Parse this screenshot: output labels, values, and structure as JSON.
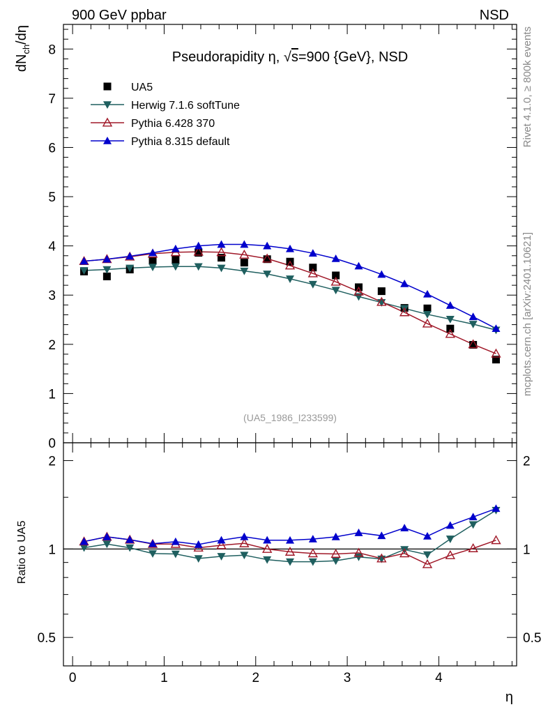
{
  "header": {
    "left": "900 GeV ppbar",
    "right": "NSD"
  },
  "side_text": {
    "top": "Rivet 4.1.0, ≥ 800k events",
    "bottom": "mcplots.cern.ch [arXiv:2401.10621]"
  },
  "chart_data": {
    "type": "scatter",
    "title": "Pseudorapidity η, √s=900 {GeV}, NSD",
    "title_parts": {
      "prefix": "Pseudorapidity η, ",
      "sqrt_symbol": "√",
      "sqrt_arg": "s",
      "suffix": "=900 {GeV}, NSD"
    },
    "xlabel": "η",
    "ylabel": "dN_ch/dη",
    "ylabel_parts": {
      "base": "dN",
      "sub": "ch",
      "rest": "/dη"
    },
    "ratio_ylabel": "Ratio to UA5",
    "source_label": "(UA5_1986_I233599)",
    "xlim": [
      -0.1,
      4.85
    ],
    "ylim": [
      0,
      8.5
    ],
    "ratio_ylim": [
      0.4,
      2.3
    ],
    "x_ticks": [
      0,
      1,
      2,
      3,
      4
    ],
    "x_tick_labels": [
      "0",
      "1",
      "2",
      "3",
      "4"
    ],
    "y_ticks": [
      0,
      1,
      2,
      3,
      4,
      5,
      6,
      7,
      8
    ],
    "y_tick_labels": [
      "0",
      "1",
      "2",
      "3",
      "4",
      "5",
      "6",
      "7",
      "8"
    ],
    "ratio_ticks": [
      0.5,
      1,
      2
    ],
    "ratio_tick_labels": [
      "0.5",
      "1",
      "2"
    ],
    "legend_position": "top-left",
    "x": [
      0.125,
      0.375,
      0.625,
      0.875,
      1.125,
      1.375,
      1.625,
      1.875,
      2.125,
      2.375,
      2.625,
      2.875,
      3.125,
      3.375,
      3.625,
      3.875,
      4.125,
      4.375,
      4.625
    ],
    "series": [
      {
        "name": "UA5",
        "kind": "data",
        "marker": "square-filled",
        "color": "#000000",
        "values": [
          3.48,
          3.38,
          3.52,
          3.7,
          3.72,
          3.86,
          3.76,
          3.66,
          3.73,
          3.68,
          3.56,
          3.4,
          3.16,
          3.08,
          2.74,
          2.73,
          2.32,
          1.99,
          1.69
        ],
        "ratio": [
          1.0,
          1.0,
          1.0,
          1.0,
          1.0,
          1.0,
          1.0,
          1.0,
          1.0,
          1.0,
          1.0,
          1.0,
          1.0,
          1.0,
          1.0,
          1.0,
          1.0,
          1.0,
          1.0
        ]
      },
      {
        "name": "Herwig 7.1.6 softTune",
        "kind": "mc",
        "marker": "triangle-down-filled",
        "color": "#1f5f5f",
        "values": [
          3.5,
          3.52,
          3.55,
          3.57,
          3.58,
          3.58,
          3.55,
          3.49,
          3.43,
          3.33,
          3.22,
          3.1,
          2.97,
          2.85,
          2.73,
          2.61,
          2.51,
          2.41,
          2.29
        ],
        "ratio": [
          1.01,
          1.04,
          1.01,
          0.965,
          0.962,
          0.928,
          0.944,
          0.953,
          0.92,
          0.905,
          0.905,
          0.912,
          0.94,
          0.925,
          0.996,
          0.956,
          1.082,
          1.211,
          1.355
        ]
      },
      {
        "name": "Pythia 6.428 370",
        "kind": "mc",
        "marker": "triangle-up-open",
        "color": "#a01828",
        "values": [
          3.69,
          3.73,
          3.78,
          3.84,
          3.87,
          3.88,
          3.87,
          3.82,
          3.74,
          3.6,
          3.44,
          3.27,
          3.07,
          2.86,
          2.65,
          2.42,
          2.21,
          2.0,
          1.81
        ],
        "ratio": [
          1.06,
          1.1,
          1.075,
          1.04,
          1.04,
          1.01,
          1.03,
          1.045,
          1.0,
          0.978,
          0.966,
          0.962,
          0.97,
          0.928,
          0.966,
          0.887,
          0.952,
          1.005,
          1.071
        ]
      },
      {
        "name": "Pythia 8.315 default",
        "kind": "mc",
        "marker": "triangle-up-filled",
        "color": "#0000cc",
        "values": [
          3.69,
          3.73,
          3.79,
          3.86,
          3.94,
          4.0,
          4.03,
          4.03,
          4.0,
          3.94,
          3.85,
          3.74,
          3.59,
          3.42,
          3.23,
          3.02,
          2.79,
          2.56,
          2.32
        ],
        "ratio": [
          1.06,
          1.1,
          1.076,
          1.043,
          1.059,
          1.036,
          1.072,
          1.101,
          1.072,
          1.071,
          1.081,
          1.1,
          1.136,
          1.11,
          1.179,
          1.106,
          1.203,
          1.286,
          1.373
        ]
      }
    ]
  }
}
